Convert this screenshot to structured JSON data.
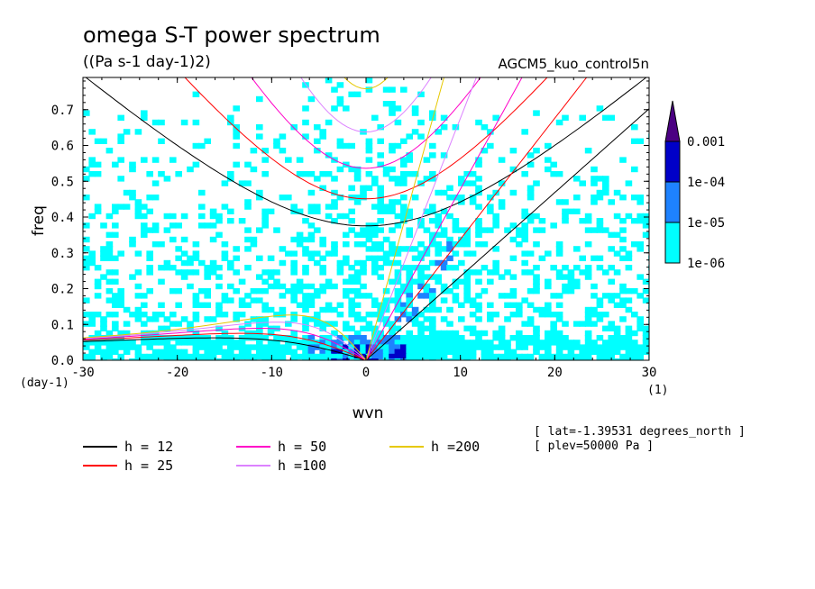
{
  "chart_data": {
    "type": "heatmap",
    "title": "omega S-T power spectrum",
    "units": "((Pa s-1 day-1)2)",
    "run_label": "AGCM5_kuo_control5n",
    "xlabel": "wvn",
    "ylabel": "freq",
    "x_unit_label": "(1)",
    "y_unit_label": "(day-1)",
    "xlim": [
      -30,
      30
    ],
    "ylim": [
      0,
      0.79
    ],
    "x_ticks": [
      -30,
      -20,
      -10,
      0,
      10,
      20,
      30
    ],
    "x_tick_labels": [
      "-30",
      "-20",
      "-10",
      "0",
      "10",
      "20",
      "30"
    ],
    "y_ticks": [
      0,
      0.1,
      0.2,
      0.3,
      0.4,
      0.5,
      0.6,
      0.7
    ],
    "y_tick_labels": [
      "0.0",
      "0.1",
      "0.2",
      "0.3",
      "0.4",
      "0.5",
      "0.6",
      "0.7"
    ],
    "colorbar": {
      "levels": [
        "1e-06",
        "1e-05",
        "1e-04",
        "0.001"
      ],
      "colors": [
        "#00ffff",
        "#1e82ff",
        "#0000c8",
        "#4b0082"
      ]
    },
    "dispersion_curves": [
      {
        "name": "h = 12",
        "h": 12,
        "color": "#000000"
      },
      {
        "name": "h = 25",
        "h": 25,
        "color": "#ff0000"
      },
      {
        "name": "h = 50",
        "h": 50,
        "color": "#ff00c8"
      },
      {
        "name": "h =100",
        "h": 100,
        "color": "#dc82ff"
      },
      {
        "name": "h =200",
        "h": 200,
        "color": "#e6c800"
      }
    ],
    "annotations": [
      "[ lat=-1.39531 degrees_north ]",
      "[ plev=50000 Pa ]"
    ]
  }
}
